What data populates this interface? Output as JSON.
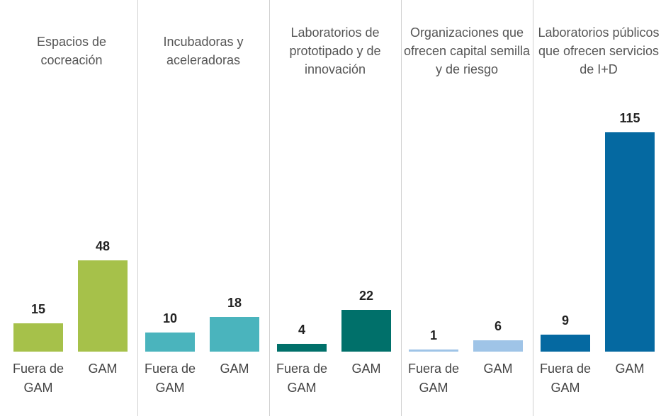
{
  "chart_data": [
    {
      "type": "bar",
      "title": "Espacios de cocreación",
      "categories": [
        "Fuera de GAM",
        "GAM"
      ],
      "values": [
        15,
        48
      ],
      "color": "#a6c14a"
    },
    {
      "type": "bar",
      "title": "Incubadoras y aceleradoras",
      "categories": [
        "Fuera de GAM",
        "GAM"
      ],
      "values": [
        10,
        18
      ],
      "color": "#4ab4bd"
    },
    {
      "type": "bar",
      "title": "Laboratorios de prototipado y de innovación",
      "categories": [
        "Fuera de GAM",
        "GAM"
      ],
      "values": [
        4,
        22
      ],
      "color": "#00706a"
    },
    {
      "type": "bar",
      "title": "Organizaciones que ofrecen capital semilla y de riesgo",
      "categories": [
        "Fuera de GAM",
        "GAM"
      ],
      "values": [
        1,
        6
      ],
      "color": "#9fc4e7"
    },
    {
      "type": "bar",
      "title": "Laboratorios públicos que ofrecen servicios de I+D",
      "categories": [
        "Fuera de GAM",
        "GAM"
      ],
      "values": [
        9,
        115
      ],
      "color": "#0569a1"
    }
  ]
}
